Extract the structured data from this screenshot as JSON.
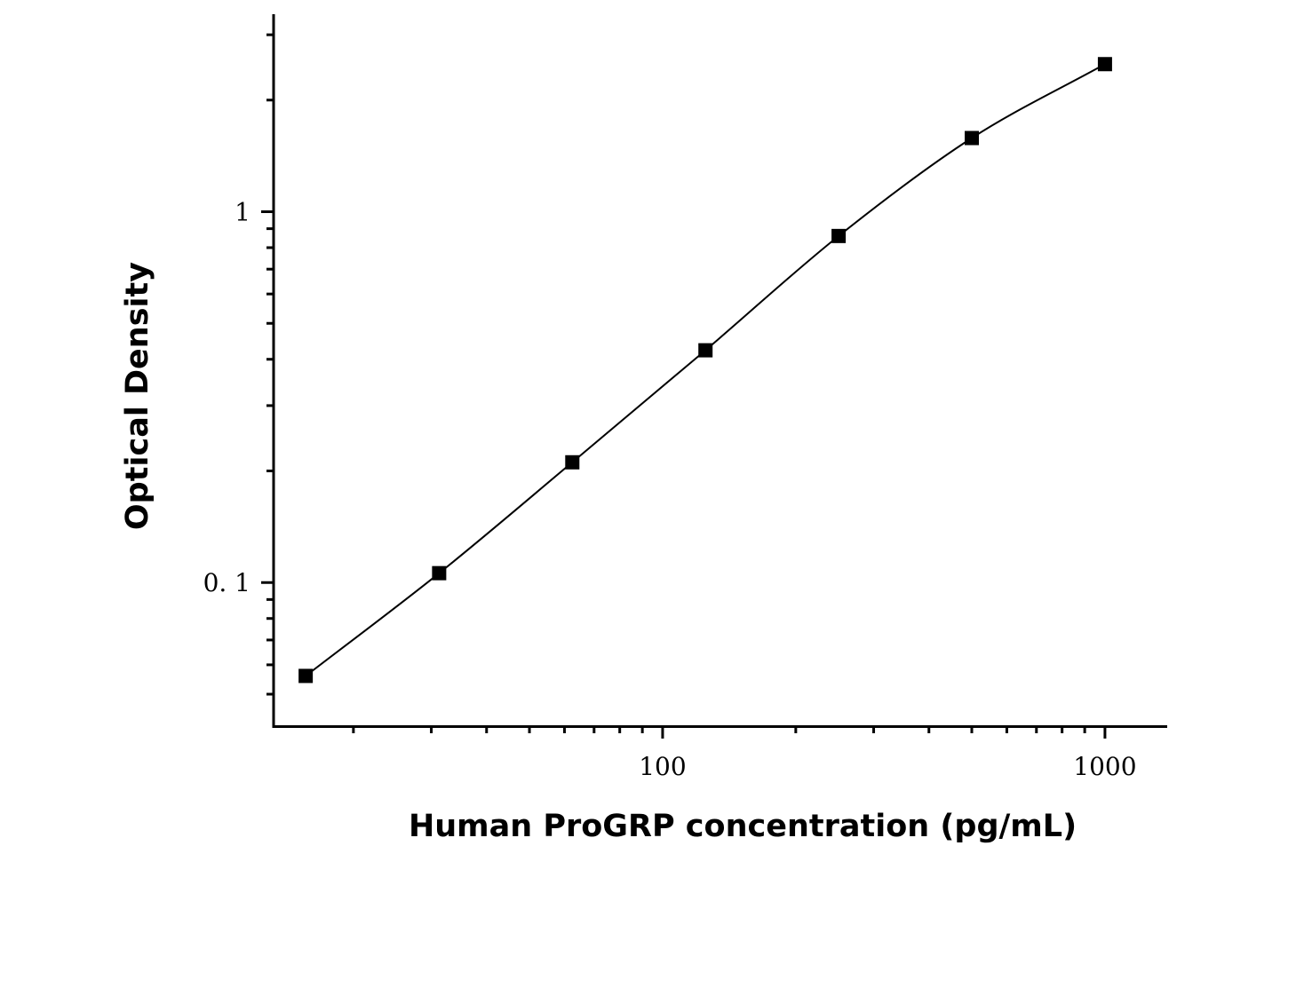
{
  "chart_data": {
    "type": "scatter",
    "xlabel": "Human ProGRP concentration (pg/mL)",
    "ylabel": "Optical  Density",
    "x_scale": "log",
    "y_scale": "log",
    "x_ticks": [
      100,
      1000
    ],
    "x_tick_labels": [
      "100",
      "1000"
    ],
    "y_ticks": [
      0.1,
      1
    ],
    "y_tick_labels": [
      "0. 1",
      "1"
    ],
    "xlim": [
      13.2,
      1370
    ],
    "ylim": [
      0.041,
      3.39
    ],
    "grid": false,
    "legend": "none",
    "series": [
      {
        "x": [
          15.6,
          31.25,
          62.5,
          125,
          250,
          500,
          1000
        ],
        "y": [
          0.056,
          0.106,
          0.211,
          0.423,
          0.86,
          1.58,
          2.5
        ],
        "marker": "square",
        "fit_line": true,
        "color": "#000000"
      }
    ]
  }
}
